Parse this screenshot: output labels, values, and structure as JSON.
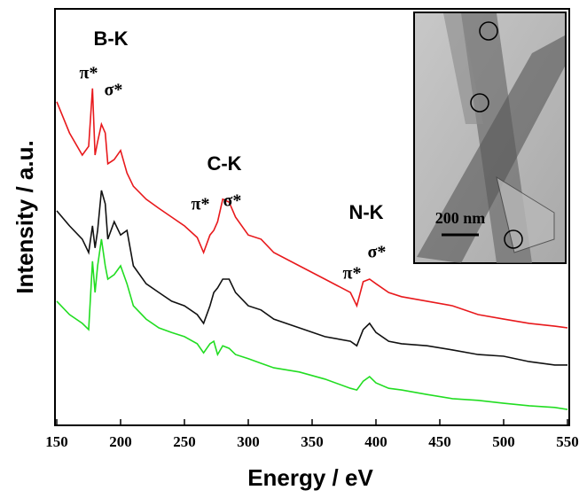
{
  "chart_data": {
    "type": "line",
    "x_label": "Energy / eV",
    "y_label": "Intensity / a.u.",
    "x": [
      150,
      160,
      170,
      175,
      178,
      180,
      182,
      185,
      188,
      190,
      195,
      200,
      205,
      210,
      220,
      230,
      240,
      250,
      260,
      265,
      270,
      273,
      276,
      280,
      285,
      290,
      300,
      310,
      320,
      340,
      360,
      380,
      385,
      390,
      395,
      400,
      410,
      420,
      440,
      460,
      480,
      500,
      520,
      540,
      550
    ],
    "series": [
      {
        "color": "#e8191c",
        "values": [
          77.7,
          70.2,
          64.9,
          67.0,
          80.9,
          64.9,
          68.1,
          72.3,
          70.2,
          62.8,
          63.8,
          66.0,
          60.6,
          57.4,
          54.3,
          52.1,
          50.0,
          47.9,
          45.1,
          41.5,
          45.7,
          46.8,
          48.9,
          54.3,
          53.6,
          50.0,
          45.7,
          44.7,
          41.5,
          38.3,
          35.1,
          31.9,
          28.7,
          34.5,
          35.1,
          34.0,
          31.9,
          30.9,
          29.8,
          28.7,
          26.6,
          25.5,
          24.5,
          23.8,
          23.4
        ]
      },
      {
        "color": "#111111",
        "values": [
          51.5,
          47.9,
          44.7,
          41.5,
          47.9,
          42.6,
          46.8,
          56.4,
          53.2,
          44.7,
          48.9,
          45.7,
          46.8,
          38.3,
          34.0,
          31.9,
          29.8,
          28.7,
          26.6,
          24.5,
          28.7,
          31.9,
          33.0,
          35.1,
          35.1,
          31.9,
          28.7,
          27.7,
          25.5,
          23.4,
          21.3,
          20.2,
          19.1,
          23.0,
          24.5,
          22.3,
          20.2,
          19.6,
          19.1,
          18.1,
          17.0,
          16.6,
          15.3,
          14.5,
          14.5
        ]
      },
      {
        "color": "#22dd22",
        "values": [
          29.8,
          26.6,
          24.5,
          23.0,
          39.4,
          31.9,
          38.3,
          44.7,
          38.3,
          35.1,
          36.2,
          38.3,
          34.0,
          28.7,
          25.5,
          23.4,
          22.3,
          21.3,
          19.6,
          17.4,
          19.6,
          20.2,
          17.0,
          19.1,
          18.5,
          17.0,
          16.0,
          14.9,
          13.8,
          12.8,
          11.1,
          8.9,
          8.5,
          10.6,
          11.7,
          10.2,
          8.9,
          8.5,
          7.4,
          6.4,
          6.0,
          5.3,
          4.7,
          4.3,
          3.8
        ]
      }
    ],
    "xlim": [
      150,
      550
    ],
    "xticks": [
      150,
      200,
      250,
      300,
      350,
      400,
      450,
      500,
      550
    ],
    "ylim": [
      0,
      100
    ],
    "annotations": [
      "B-K",
      "π*",
      "σ*",
      "C-K",
      "π*",
      "σ*",
      "N-K",
      "π*",
      "σ*"
    ],
    "inset_label": "200 nm"
  }
}
